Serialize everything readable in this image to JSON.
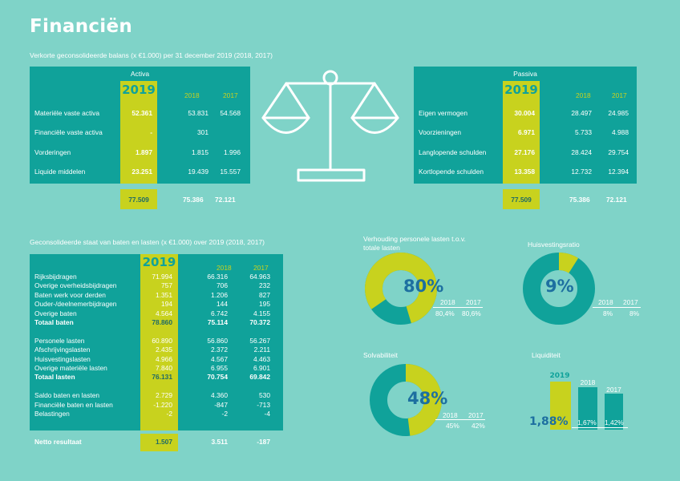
{
  "title": "Financiën",
  "balans": {
    "subtitle": "Verkorte geconsolideerde balans (x €1.000) per 31 december 2019 (2018, 2017)",
    "year_main": "2019",
    "year_2018": "2018",
    "year_2017": "2017",
    "activa": {
      "header": "Activa",
      "rows": [
        {
          "label": "Materiële vaste activa",
          "v2019": "52.361",
          "v2018": "53.831",
          "v2017": "54.568"
        },
        {
          "label": "Financiële vaste activa",
          "v2019": "-",
          "v2018": "301",
          "v2017": ""
        },
        {
          "label": "Vorderingen",
          "v2019": "1.897",
          "v2018": "1.815",
          "v2017": "1.996"
        },
        {
          "label": "Liquide middelen",
          "v2019": "23.251",
          "v2018": "19.439",
          "v2017": "15.557"
        }
      ],
      "total": {
        "v2019": "77.509",
        "v2018": "75.386",
        "v2017": "72.121"
      }
    },
    "passiva": {
      "header": "Passiva",
      "rows": [
        {
          "label": "Eigen vermogen",
          "v2019": "30.004",
          "v2018": "28.497",
          "v2017": "24.985"
        },
        {
          "label": "Voorzieningen",
          "v2019": "6.971",
          "v2018": "5.733",
          "v2017": "4.988"
        },
        {
          "label": "Langlopende schulden",
          "v2019": "27.176",
          "v2018": "28.424",
          "v2017": "29.754"
        },
        {
          "label": "Kortlopende schulden",
          "v2019": "13.358",
          "v2018": "12.732",
          "v2017": "12.394"
        }
      ],
      "total": {
        "v2019": "77.509",
        "v2018": "75.386",
        "v2017": "72.121"
      }
    }
  },
  "staat": {
    "subtitle": "Geconsolideerde staat van baten en lasten (x €1.000) over 2019 (2018, 2017)",
    "year_main": "2019",
    "year_2018": "2018",
    "year_2017": "2017",
    "baten": [
      {
        "label": "Rijksbijdragen",
        "v2019": "71.994",
        "v2018": "66.316",
        "v2017": "64.963"
      },
      {
        "label": "Overige overheidsbijdragen",
        "v2019": "757",
        "v2018": "706",
        "v2017": "232"
      },
      {
        "label": "Baten werk voor derden",
        "v2019": "1.351",
        "v2018": "1.206",
        "v2017": "827"
      },
      {
        "label": "Ouder-/deelnemerbijdragen",
        "v2019": "194",
        "v2018": "144",
        "v2017": "195"
      },
      {
        "label": "Overige baten",
        "v2019": "4.564",
        "v2018": "6.742",
        "v2017": "4.155"
      }
    ],
    "totaal_baten": {
      "label": "Totaal baten",
      "v2019": "78.860",
      "v2018": "75.114",
      "v2017": "70.372"
    },
    "lasten": [
      {
        "label": "Personele lasten",
        "v2019": "60.890",
        "v2018": "56.860",
        "v2017": "56.267"
      },
      {
        "label": "Afschrijvingslasten",
        "v2019": "2.435",
        "v2018": "2.372",
        "v2017": "2.211"
      },
      {
        "label": "Huisvestingslasten",
        "v2019": "4.966",
        "v2018": "4.567",
        "v2017": "4.463"
      },
      {
        "label": "Overige materiële lasten",
        "v2019": "7.840",
        "v2018": "6.955",
        "v2017": "6.901"
      }
    ],
    "totaal_lasten": {
      "label": "Totaal lasten",
      "v2019": "76.131",
      "v2018": "70.754",
      "v2017": "69.842"
    },
    "saldo": [
      {
        "label": "Saldo baten en lasten",
        "v2019": "2.729",
        "v2018": "4.360",
        "v2017": "530"
      },
      {
        "label": "Financiële baten en lasten",
        "v2019": "-1.220",
        "v2018": "-847",
        "v2017": "-713"
      },
      {
        "label": "Belastingen",
        "v2019": "-2",
        "v2018": "-2",
        "v2017": "-4"
      }
    ],
    "netto": {
      "label": "Netto resultaat",
      "v2019": "1.507",
      "v2018": "3.511",
      "v2017": "-187"
    }
  },
  "kpi": {
    "personeel": {
      "title": "Verhouding personele lasten t.o.v. totale lasten",
      "value": "80%",
      "fraction": 0.8,
      "y2018": "2018",
      "y2017": "2017",
      "v2018": "80,4%",
      "v2017": "80,6%"
    },
    "huisvesting": {
      "title": "Huisvestingsratio",
      "value": "9%",
      "fraction": 0.09,
      "y2018": "2018",
      "y2017": "2017",
      "v2018": "8%",
      "v2017": "8%"
    },
    "solvabiliteit": {
      "title": "Solvabiliteit",
      "value": "48%",
      "fraction": 0.48,
      "y2018": "2018",
      "y2017": "2017",
      "v2018": "45%",
      "v2017": "42%"
    },
    "liquiditeit": {
      "title": "Liquiditeit",
      "y2019": "2019",
      "y2018": "2018",
      "y2017": "2017",
      "v2019": "1,88%",
      "v2018": "1,67%",
      "v2017": "1,42%",
      "values": [
        1.88,
        1.67,
        1.42
      ]
    }
  },
  "colors": {
    "teal": "#10a29a",
    "yellow": "#c8d21e",
    "background": "#7fd3c8",
    "blue": "#1d6fa0"
  }
}
